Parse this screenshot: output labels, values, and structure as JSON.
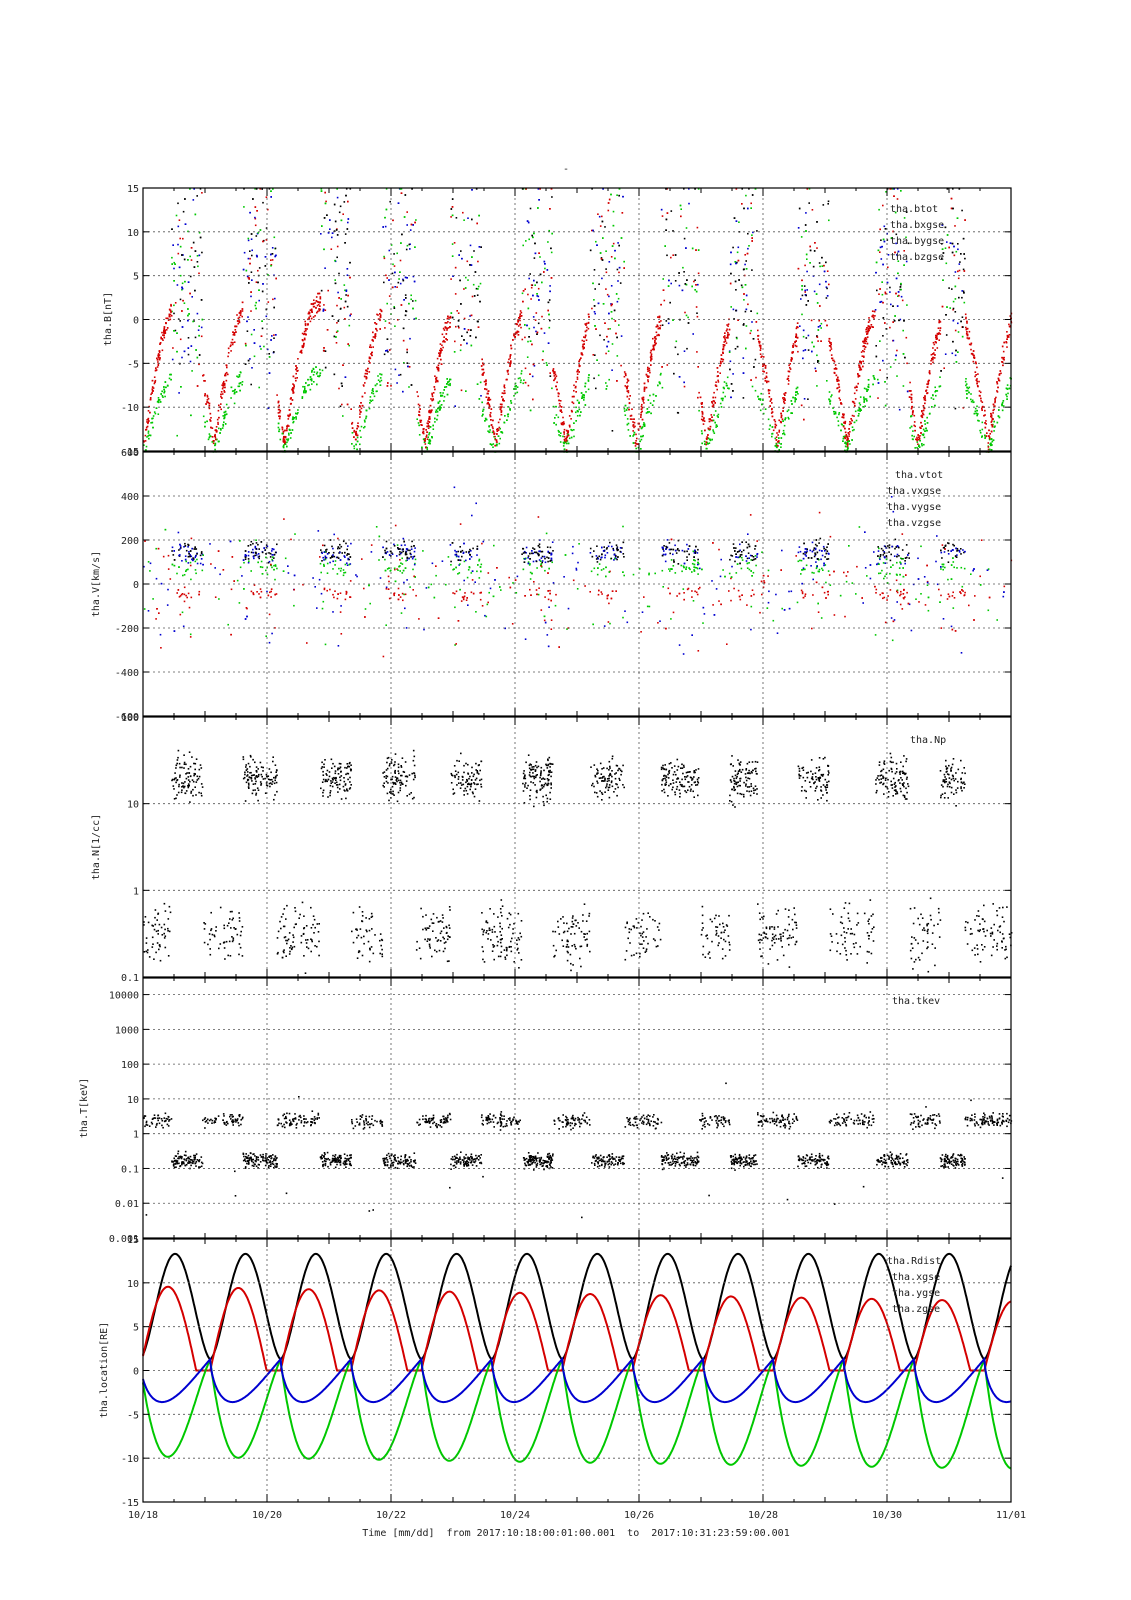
{
  "figure": {
    "top_mark": "-",
    "xlabel": "Time [mm/dd]  from 2017:10:18:00:01:00.001  to  2017:10:31:23:59:00.001"
  },
  "colors": {
    "black": "#000000",
    "red": "#d40000",
    "green": "#00c800",
    "blue": "#0000d0",
    "grid": "#555555"
  },
  "chart_data": [
    {
      "type": "scatter",
      "panel": "B",
      "ylabel": "tha.B[nT]",
      "ylim": [
        -15,
        15
      ],
      "y_ticks": [
        "15",
        "10",
        "5",
        "0",
        "-5",
        "-10",
        "-15"
      ],
      "x_ticks": [
        "10/18",
        "10/20",
        "10/22",
        "10/24",
        "10/26",
        "10/28",
        "10/30",
        "11/01"
      ],
      "xlim_days": [
        18,
        32
      ],
      "grid": true,
      "legend_position": "top-right",
      "series": [
        {
          "name": "tha.btot",
          "color": "black"
        },
        {
          "name": "tha.bxgse",
          "color": "red"
        },
        {
          "name": "tha.bygse",
          "color": "green"
        },
        {
          "name": "tha.bzgse",
          "color": "blue"
        }
      ],
      "magnetosheath_intervals_days": [
        [
          18.45,
          18.95
        ],
        [
          19.6,
          20.15
        ],
        [
          20.85,
          21.35
        ],
        [
          21.85,
          22.4
        ],
        [
          22.95,
          23.45
        ],
        [
          24.1,
          24.6
        ],
        [
          25.2,
          25.75
        ],
        [
          26.35,
          26.95
        ],
        [
          27.45,
          27.9
        ],
        [
          28.55,
          29.05
        ],
        [
          29.8,
          30.35
        ],
        [
          30.85,
          31.25
        ]
      ]
    },
    {
      "type": "scatter",
      "panel": "V",
      "ylabel": "tha.V[km/s]",
      "ylim": [
        -600,
        600
      ],
      "y_ticks": [
        "600",
        "400",
        "200",
        "0",
        "-200",
        "-400",
        "-600"
      ],
      "x_ticks": [
        "10/18",
        "10/20",
        "10/22",
        "10/24",
        "10/26",
        "10/28",
        "10/30",
        "11/01"
      ],
      "grid": true,
      "legend_position": "top-right",
      "series": [
        {
          "name": "tha.vtot",
          "color": "black"
        },
        {
          "name": "tha.vxgse",
          "color": "red"
        },
        {
          "name": "tha.vygse",
          "color": "green"
        },
        {
          "name": "tha.vzgse",
          "color": "blue"
        }
      ]
    },
    {
      "type": "scatter",
      "panel": "N",
      "ylabel": "tha.N[1/cc]",
      "yscale": "log",
      "ylim": [
        0.1,
        100
      ],
      "y_ticks": [
        "100",
        "10",
        "1",
        "0.1"
      ],
      "x_ticks": [
        "10/18",
        "10/20",
        "10/22",
        "10/24",
        "10/26",
        "10/28",
        "10/30",
        "11/01"
      ],
      "grid": true,
      "legend_position": "top-right",
      "series": [
        {
          "name": "tha.Np",
          "color": "black"
        }
      ]
    },
    {
      "type": "scatter",
      "panel": "T",
      "ylabel": "tha.T[keV]",
      "yscale": "log",
      "ylim": [
        0.001,
        30000
      ],
      "y_ticks": [
        "10000",
        "1000",
        "100",
        "10",
        "1",
        "0.1",
        "0.01",
        "0.001"
      ],
      "x_ticks": [
        "10/18",
        "10/20",
        "10/22",
        "10/24",
        "10/26",
        "10/28",
        "10/30",
        "11/01"
      ],
      "grid": true,
      "legend_position": "top-right",
      "series": [
        {
          "name": "tha.tkev",
          "color": "black"
        }
      ]
    },
    {
      "type": "line",
      "panel": "location",
      "ylabel": "tha.location[RE]",
      "ylim": [
        -15,
        15
      ],
      "y_ticks": [
        "15",
        "10",
        "5",
        "0",
        "-5",
        "-10",
        "-15"
      ],
      "x_ticks": [
        "10/18",
        "10/20",
        "10/22",
        "10/24",
        "10/26",
        "10/28",
        "10/30",
        "11/01"
      ],
      "grid": true,
      "legend_position": "top-right",
      "orbit_period_days": 1.135,
      "series": [
        {
          "name": "tha.Rdist",
          "color": "black",
          "max": 13.3,
          "min": 1.3
        },
        {
          "name": "tha.xgse",
          "color": "red",
          "max_start": 9.6,
          "max_end": 7.9,
          "min": 0
        },
        {
          "name": "tha.ygse",
          "color": "green",
          "max": 1.2,
          "min_start": -9.8,
          "min_end": -11.2
        },
        {
          "name": "tha.zgse",
          "color": "blue",
          "max": 1.3,
          "min": -3.6
        }
      ]
    }
  ]
}
